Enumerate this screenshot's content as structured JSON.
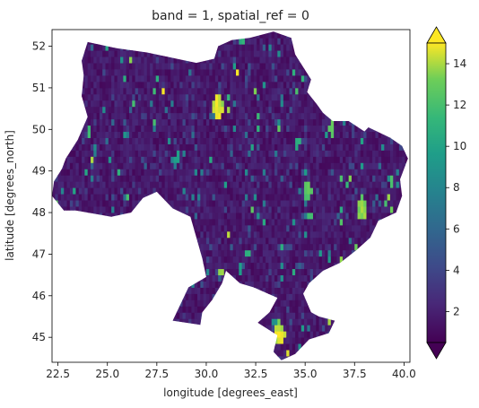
{
  "chart_data": {
    "type": "heatmap",
    "title": "band = 1, spatial_ref = 0",
    "xlabel": "longitude [degrees_east]",
    "ylabel": "latitude [degrees_north]",
    "xlim": [
      22.2,
      40.3
    ],
    "ylim": [
      44.4,
      52.4
    ],
    "x_ticks": [
      "22.5",
      "25.0",
      "27.5",
      "30.0",
      "32.5",
      "35.0",
      "37.5",
      "40.0"
    ],
    "y_ticks": [
      "45",
      "46",
      "47",
      "48",
      "49",
      "50",
      "51",
      "52"
    ],
    "colorbar": {
      "min": 0.5,
      "max": 15,
      "ticks": [
        "2",
        "4",
        "6",
        "8",
        "10",
        "12",
        "14"
      ],
      "colormap": "viridis",
      "extend": "both"
    },
    "grid": false,
    "colors": {
      "viridis_low": "#440154",
      "viridis_mid": "#21918c",
      "viridis_high": "#fde725"
    },
    "region_outline_lonlat": [
      [
        24.0,
        52.1
      ],
      [
        25.5,
        51.95
      ],
      [
        27.0,
        51.85
      ],
      [
        28.5,
        51.7
      ],
      [
        29.5,
        51.6
      ],
      [
        30.4,
        51.7
      ],
      [
        30.6,
        52.0
      ],
      [
        31.3,
        52.15
      ],
      [
        32.2,
        52.2
      ],
      [
        33.4,
        52.35
      ],
      [
        34.3,
        52.2
      ],
      [
        34.5,
        51.8
      ],
      [
        35.3,
        51.2
      ],
      [
        35.1,
        50.9
      ],
      [
        35.6,
        50.6
      ],
      [
        35.9,
        50.4
      ],
      [
        36.4,
        50.2
      ],
      [
        37.2,
        50.2
      ],
      [
        38.0,
        49.95
      ],
      [
        38.2,
        50.05
      ],
      [
        39.3,
        49.8
      ],
      [
        39.9,
        49.6
      ],
      [
        40.2,
        49.3
      ],
      [
        39.8,
        48.8
      ],
      [
        39.9,
        48.4
      ],
      [
        39.6,
        48.0
      ],
      [
        38.7,
        47.8
      ],
      [
        38.3,
        47.4
      ],
      [
        37.6,
        47.1
      ],
      [
        36.8,
        46.8
      ],
      [
        35.9,
        46.6
      ],
      [
        35.2,
        46.3
      ],
      [
        34.9,
        46.05
      ],
      [
        35.3,
        45.6
      ],
      [
        35.7,
        45.5
      ],
      [
        36.5,
        45.4
      ],
      [
        36.2,
        45.1
      ],
      [
        35.2,
        44.95
      ],
      [
        34.5,
        44.6
      ],
      [
        33.8,
        44.45
      ],
      [
        33.4,
        44.65
      ],
      [
        33.6,
        45.05
      ],
      [
        32.6,
        45.35
      ],
      [
        33.2,
        45.6
      ],
      [
        33.6,
        45.95
      ],
      [
        32.4,
        46.2
      ],
      [
        31.7,
        46.3
      ],
      [
        31.0,
        46.6
      ],
      [
        30.8,
        46.3
      ],
      [
        30.3,
        45.9
      ],
      [
        29.8,
        45.6
      ],
      [
        29.7,
        45.3
      ],
      [
        28.3,
        45.4
      ],
      [
        28.7,
        45.8
      ],
      [
        29.1,
        46.2
      ],
      [
        30.0,
        46.45
      ],
      [
        29.8,
        46.9
      ],
      [
        29.5,
        47.4
      ],
      [
        29.2,
        47.9
      ],
      [
        28.3,
        48.1
      ],
      [
        27.5,
        48.5
      ],
      [
        26.8,
        48.35
      ],
      [
        26.2,
        48.0
      ],
      [
        25.2,
        47.9
      ],
      [
        24.6,
        47.95
      ],
      [
        23.4,
        48.05
      ],
      [
        22.8,
        48.05
      ],
      [
        22.2,
        48.4
      ],
      [
        22.3,
        48.75
      ],
      [
        22.7,
        49.05
      ],
      [
        22.9,
        49.3
      ],
      [
        23.5,
        49.75
      ],
      [
        24.0,
        50.3
      ],
      [
        23.7,
        50.8
      ],
      [
        23.8,
        51.3
      ],
      [
        23.7,
        51.65
      ],
      [
        24.0,
        52.1
      ]
    ],
    "hotspots": [
      {
        "lon": 30.5,
        "lat": 50.45,
        "value": 15,
        "radius": 0.28
      },
      {
        "lon": 36.25,
        "lat": 49.95,
        "value": 13,
        "radius": 0.18
      },
      {
        "lon": 35.05,
        "lat": 48.45,
        "value": 13,
        "radius": 0.2
      },
      {
        "lon": 37.8,
        "lat": 48.0,
        "value": 14,
        "radius": 0.22
      },
      {
        "lon": 33.6,
        "lat": 45.0,
        "value": 15,
        "radius": 0.3
      },
      {
        "lon": 24.0,
        "lat": 49.85,
        "value": 12,
        "radius": 0.15
      },
      {
        "lon": 35.15,
        "lat": 47.85,
        "value": 12,
        "radius": 0.15
      },
      {
        "lon": 30.7,
        "lat": 46.5,
        "value": 14,
        "radius": 0.15
      },
      {
        "lon": 32.0,
        "lat": 46.95,
        "value": 11,
        "radius": 0.12
      },
      {
        "lon": 34.55,
        "lat": 49.6,
        "value": 11,
        "radius": 0.12
      },
      {
        "lon": 28.45,
        "lat": 49.25,
        "value": 10,
        "radius": 0.12
      },
      {
        "lon": 26.3,
        "lat": 50.6,
        "value": 12,
        "radius": 0.1
      },
      {
        "lon": 37.5,
        "lat": 47.1,
        "value": 13,
        "radius": 0.12
      },
      {
        "lon": 32.5,
        "lat": 47.9,
        "value": 9,
        "radius": 0.1
      },
      {
        "lon": 39.3,
        "lat": 48.6,
        "value": 12,
        "radius": 0.12
      },
      {
        "lon": 23.3,
        "lat": 48.5,
        "value": 10,
        "radius": 0.1
      },
      {
        "lon": 31.3,
        "lat": 51.5,
        "value": 10,
        "radius": 0.1
      },
      {
        "lon": 25.9,
        "lat": 48.3,
        "value": 12,
        "radius": 0.1
      },
      {
        "lon": 33.4,
        "lat": 45.3,
        "value": 9,
        "radius": 0.15
      },
      {
        "lon": 36.1,
        "lat": 45.35,
        "value": 14,
        "radius": 0.1
      }
    ]
  }
}
